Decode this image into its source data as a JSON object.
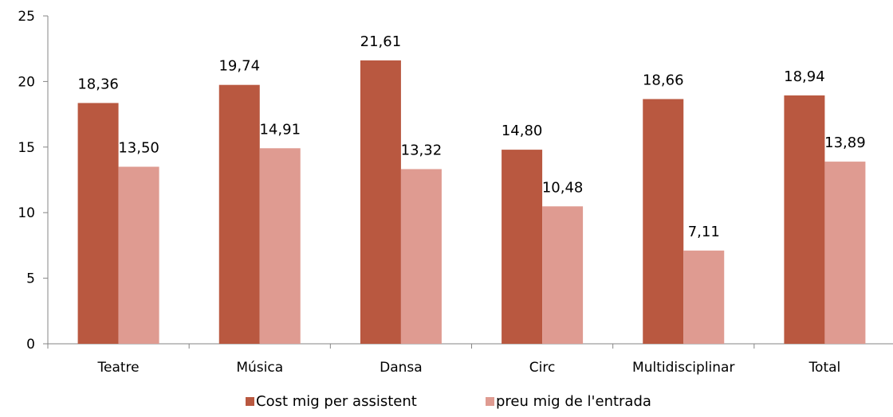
{
  "chart_data": {
    "type": "bar",
    "title": "",
    "xlabel": "",
    "ylabel": "",
    "categories": [
      "Teatre",
      "Música",
      "Dansa",
      "Circ",
      "Multidisciplinar",
      "Total"
    ],
    "series": [
      {
        "name": "Cost mig per assistent",
        "color": "#b95840",
        "values": [
          18.36,
          19.74,
          21.61,
          14.8,
          18.66,
          18.94
        ],
        "labels": [
          "18,36",
          "19,74",
          "21,61",
          "14,80",
          "18,66",
          "18,94"
        ]
      },
      {
        "name": "preu mig de l'entrada",
        "color": "#df9b91",
        "values": [
          13.5,
          14.91,
          13.32,
          10.48,
          7.11,
          13.89
        ],
        "labels": [
          "13,50",
          "14,91",
          "13,32",
          "10,48",
          "7,11",
          "13,89"
        ]
      }
    ],
    "ylim": [
      0,
      25
    ],
    "yticks": [
      0,
      5,
      10,
      15,
      20,
      25
    ],
    "grid": false,
    "legend_position": "bottom-center"
  }
}
